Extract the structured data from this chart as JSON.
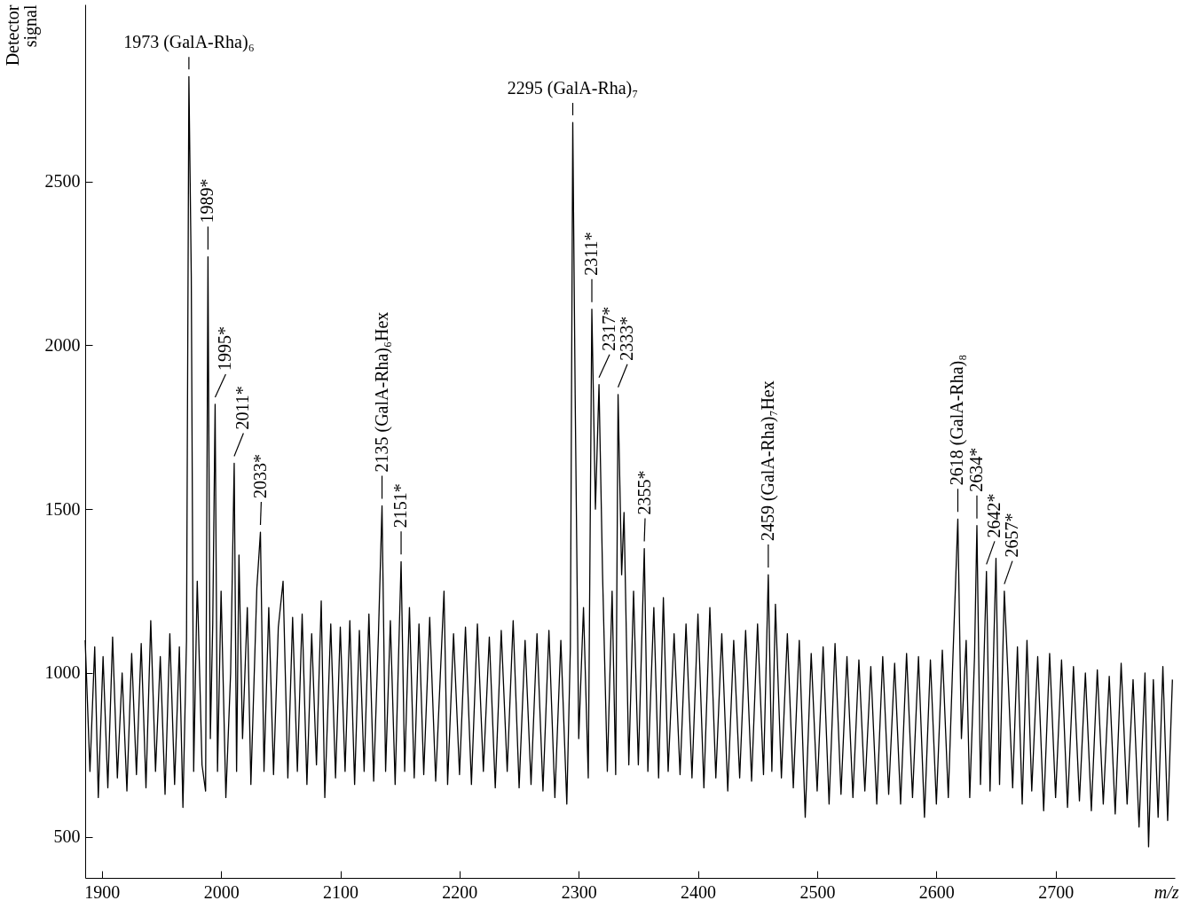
{
  "chart_data": {
    "type": "line",
    "xlabel": "m/z",
    "ylabel": "Detector signal",
    "color": "#000000",
    "xlim": [
      1886,
      2800
    ],
    "ylim": [
      375,
      3040
    ],
    "xticks": [
      1900,
      2000,
      2100,
      2200,
      2300,
      2400,
      2500,
      2600,
      2700
    ],
    "yticks": [
      500,
      1000,
      1500,
      2000,
      2500
    ],
    "x": [
      1886,
      1890,
      1894,
      1897,
      1901,
      1905,
      1909,
      1913,
      1917,
      1921,
      1925,
      1929,
      1933,
      1937,
      1941,
      1945,
      1949,
      1953,
      1957,
      1961,
      1965,
      1968,
      1971,
      1973,
      1975,
      1977,
      1980,
      1984,
      1987,
      1989,
      1991,
      1993,
      1995,
      1997,
      2000,
      2004,
      2008,
      2011,
      2013,
      2015,
      2018,
      2022,
      2025,
      2030,
      2033,
      2036,
      2040,
      2044,
      2048,
      2052,
      2056,
      2060,
      2064,
      2068,
      2072,
      2076,
      2080,
      2084,
      2087,
      2092,
      2096,
      2100,
      2104,
      2108,
      2112,
      2116,
      2120,
      2124,
      2128,
      2132,
      2135,
      2138,
      2142,
      2146,
      2151,
      2154,
      2158,
      2162,
      2166,
      2170,
      2175,
      2180,
      2187,
      2190,
      2195,
      2200,
      2205,
      2210,
      2215,
      2220,
      2225,
      2230,
      2235,
      2240,
      2245,
      2250,
      2255,
      2260,
      2265,
      2270,
      2275,
      2280,
      2285,
      2290,
      2293,
      2295,
      2297,
      2300,
      2304,
      2308,
      2311,
      2314,
      2317,
      2320,
      2324,
      2328,
      2331,
      2333,
      2336,
      2338,
      2342,
      2346,
      2350,
      2355,
      2358,
      2363,
      2367,
      2371,
      2375,
      2380,
      2385,
      2390,
      2395,
      2400,
      2405,
      2410,
      2415,
      2420,
      2425,
      2430,
      2435,
      2440,
      2445,
      2450,
      2455,
      2459,
      2462,
      2465,
      2470,
      2475,
      2480,
      2485,
      2490,
      2495,
      2500,
      2505,
      2510,
      2515,
      2520,
      2525,
      2530,
      2535,
      2540,
      2545,
      2550,
      2555,
      2560,
      2565,
      2570,
      2575,
      2580,
      2585,
      2590,
      2595,
      2600,
      2605,
      2610,
      2614,
      2618,
      2621,
      2625,
      2628,
      2632,
      2634,
      2637,
      2642,
      2645,
      2650,
      2653,
      2657,
      2660,
      2664,
      2668,
      2672,
      2676,
      2680,
      2685,
      2690,
      2695,
      2700,
      2705,
      2710,
      2715,
      2720,
      2725,
      2730,
      2735,
      2740,
      2745,
      2750,
      2755,
      2760,
      2765,
      2770,
      2775,
      2778,
      2782,
      2786,
      2790,
      2794,
      2798
    ],
    "values": [
      1100,
      700,
      1080,
      620,
      1050,
      650,
      1110,
      680,
      1000,
      640,
      1060,
      690,
      1090,
      650,
      1160,
      700,
      1050,
      630,
      1120,
      660,
      1080,
      590,
      1100,
      2820,
      2210,
      700,
      1280,
      720,
      640,
      2270,
      800,
      1150,
      1820,
      700,
      1250,
      620,
      1000,
      1640,
      700,
      1360,
      800,
      1200,
      660,
      1260,
      1430,
      700,
      1200,
      690,
      1140,
      1280,
      680,
      1170,
      700,
      1180,
      660,
      1120,
      720,
      1220,
      620,
      1150,
      680,
      1140,
      700,
      1160,
      660,
      1130,
      700,
      1180,
      670,
      1120,
      1510,
      700,
      1160,
      660,
      1340,
      700,
      1200,
      680,
      1150,
      690,
      1170,
      670,
      1250,
      660,
      1120,
      690,
      1140,
      660,
      1150,
      700,
      1110,
      650,
      1130,
      700,
      1160,
      650,
      1100,
      660,
      1120,
      640,
      1130,
      620,
      1100,
      600,
      1080,
      2680,
      1850,
      800,
      1200,
      680,
      2110,
      1500,
      1880,
      1300,
      700,
      1250,
      690,
      1850,
      1300,
      1490,
      720,
      1250,
      720,
      1380,
      700,
      1200,
      680,
      1230,
      700,
      1120,
      690,
      1150,
      680,
      1180,
      650,
      1200,
      680,
      1120,
      640,
      1100,
      680,
      1130,
      670,
      1150,
      690,
      1300,
      700,
      1210,
      680,
      1120,
      650,
      1100,
      560,
      1060,
      640,
      1080,
      600,
      1090,
      630,
      1050,
      620,
      1040,
      640,
      1020,
      600,
      1050,
      630,
      1030,
      600,
      1060,
      620,
      1050,
      560,
      1040,
      600,
      1070,
      620,
      1060,
      1470,
      800,
      1100,
      620,
      1050,
      1450,
      660,
      1310,
      640,
      1350,
      660,
      1250,
      1000,
      650,
      1080,
      600,
      1100,
      640,
      1050,
      580,
      1060,
      620,
      1040,
      590,
      1020,
      610,
      1000,
      580,
      1010,
      600,
      990,
      570,
      1030,
      600,
      980,
      530,
      1000,
      470,
      980,
      560,
      1020,
      550,
      980
    ],
    "annotations": [
      {
        "text": "1973 (GalA-Rha)₆",
        "x": 1973,
        "y": 2820
      },
      {
        "text": "1989*",
        "x": 1989,
        "y": 2270
      },
      {
        "text": "1995*",
        "x": 1995,
        "y": 1820
      },
      {
        "text": "2011*",
        "x": 2011,
        "y": 1640
      },
      {
        "text": "2033*",
        "x": 2033,
        "y": 1430
      },
      {
        "text": "2135 (GalA-Rha)₆Hex",
        "x": 2135,
        "y": 1510
      },
      {
        "text": "2151*",
        "x": 2151,
        "y": 1340
      },
      {
        "text": "2295 (GalA-Rha)₇",
        "x": 2295,
        "y": 2680
      },
      {
        "text": "2311*",
        "x": 2311,
        "y": 2110
      },
      {
        "text": "2317*",
        "x": 2317,
        "y": 1880
      },
      {
        "text": "2333*",
        "x": 2333,
        "y": 1850
      },
      {
        "text": "2355*",
        "x": 2355,
        "y": 1380
      },
      {
        "text": "2459 (GalA-Rha)₇Hex",
        "x": 2459,
        "y": 1300
      },
      {
        "text": "2618 (GalA-Rha)₈",
        "x": 2618,
        "y": 1470
      },
      {
        "text": "2634*",
        "x": 2634,
        "y": 1450
      },
      {
        "text": "2642*",
        "x": 2642,
        "y": 1310
      },
      {
        "text": "2657*",
        "x": 2657,
        "y": 1250
      }
    ]
  }
}
